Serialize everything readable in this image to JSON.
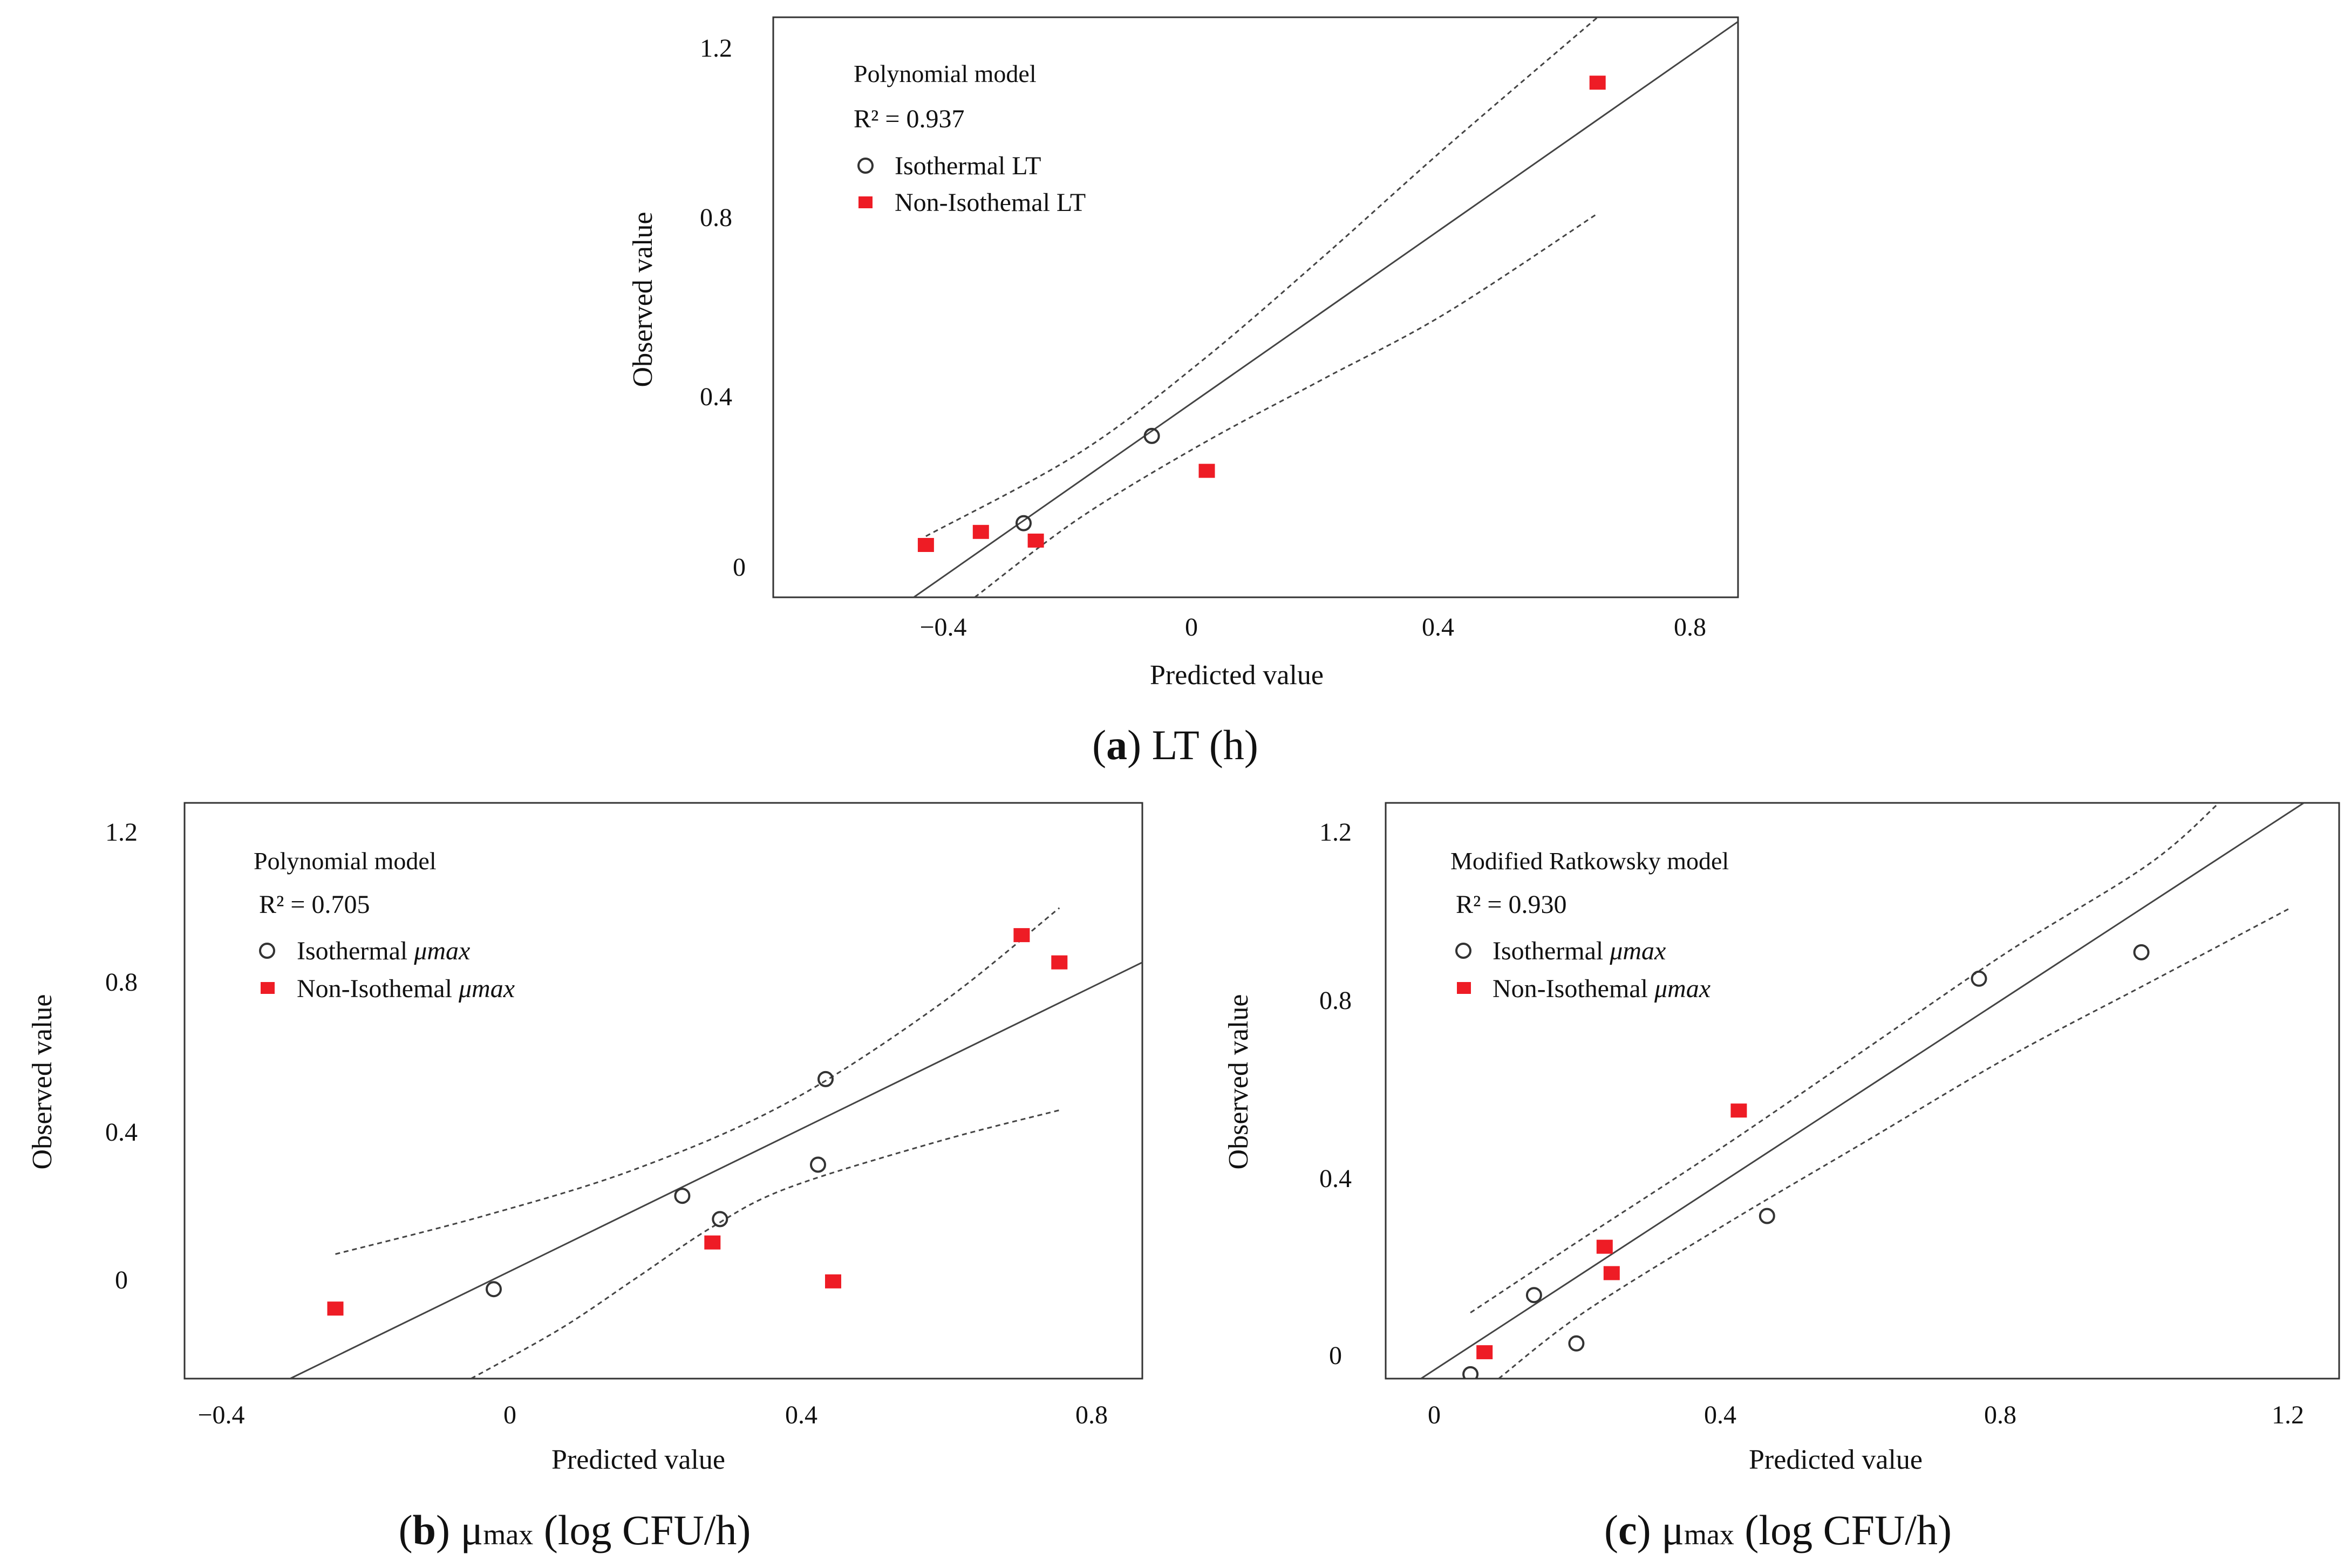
{
  "chart_data": [
    {
      "id": "a",
      "type": "scatter",
      "title": "Polynomial model",
      "r2_label": "R² = 0.937",
      "xlabel": "Predicted value",
      "ylabel": "Observed value",
      "xlim": [
        -0.7,
        0.88
      ],
      "ylim": [
        -0.06,
        1.27
      ],
      "xticks": [
        -0.4,
        0,
        0.4,
        0.8
      ],
      "xtick_labels": [
        "−0.4",
        "0",
        "0.4",
        "0.8"
      ],
      "yticks": [
        0,
        0.4,
        0.8,
        1.2
      ],
      "ytick_labels": [
        "0",
        "0.4",
        "0.8",
        "1.2"
      ],
      "legend": {
        "iso_label": "Isothermal LT",
        "noniso_label": "Non-Isothemal LT",
        "iso_sym": "",
        "noniso_sym": ""
      },
      "caption": {
        "letter": "a",
        "text": ") LT (h)",
        "sub": "",
        "rest": ""
      },
      "series": [
        {
          "name": "Isothermal",
          "marker": "open-circle",
          "points": [
            [
              -0.08,
              0.31
            ],
            [
              -0.29,
              0.11
            ]
          ]
        },
        {
          "name": "Non-Isothermal",
          "marker": "red-square",
          "points": [
            [
              -0.45,
              0.06
            ],
            [
              -0.36,
              0.09
            ],
            [
              -0.27,
              0.07
            ],
            [
              0.01,
              0.23
            ],
            [
              0.65,
              1.12
            ]
          ]
        }
      ],
      "fit_line": [
        [
          -0.47,
          -0.06
        ],
        [
          0.88,
          1.26
        ]
      ],
      "ci_upper": [
        [
          -0.45,
          0.08
        ],
        [
          -0.2,
          0.27
        ],
        [
          0.0,
          0.48
        ],
        [
          0.2,
          0.72
        ],
        [
          0.4,
          0.97
        ],
        [
          0.65,
          1.27
        ]
      ],
      "ci_lower": [
        [
          -0.37,
          -0.06
        ],
        [
          -0.2,
          0.12
        ],
        [
          0.0,
          0.29
        ],
        [
          0.2,
          0.44
        ],
        [
          0.4,
          0.59
        ],
        [
          0.65,
          0.82
        ]
      ]
    },
    {
      "id": "b",
      "type": "scatter",
      "title": "Polynomial model",
      "r2_label": "R² = 0.705",
      "xlabel": "Predicted value",
      "ylabel": "Observed value",
      "xlim": [
        -0.4,
        0.87
      ],
      "ylim": [
        -0.2,
        1.28
      ],
      "xticks": [
        -0.4,
        0,
        0.4,
        0.8
      ],
      "xtick_labels": [
        "−0.4",
        "0",
        "0.4",
        "0.8"
      ],
      "yticks": [
        0,
        0.4,
        0.8,
        1.2
      ],
      "ytick_labels": [
        "0",
        "0.4",
        "0.8",
        "1.2"
      ],
      "legend": {
        "iso_label": "Isothermal ",
        "noniso_label": "Non-Isothemal ",
        "iso_sym": "μmax",
        "noniso_sym": "μmax"
      },
      "caption": {
        "letter": "b",
        "text": ") μ",
        "sub": "max",
        "rest": " (log CFU/h)"
      },
      "series": [
        {
          "name": "Isothermal",
          "marker": "open-circle",
          "points": [
            [
              0.01,
              0.03
            ],
            [
              0.26,
              0.27
            ],
            [
              0.31,
              0.21
            ],
            [
              0.44,
              0.35
            ],
            [
              0.45,
              0.57
            ]
          ]
        },
        {
          "name": "Non-Isothermal",
          "marker": "red-square",
          "points": [
            [
              -0.2,
              -0.02
            ],
            [
              0.3,
              0.15
            ],
            [
              0.46,
              0.05
            ],
            [
              0.71,
              0.94
            ],
            [
              0.76,
              0.87
            ]
          ]
        }
      ],
      "fit_line": [
        [
          -0.26,
          -0.2
        ],
        [
          0.87,
          0.87
        ]
      ],
      "ci_upper": [
        [
          -0.2,
          0.12
        ],
        [
          0.0,
          0.22
        ],
        [
          0.2,
          0.34
        ],
        [
          0.4,
          0.51
        ],
        [
          0.6,
          0.76
        ],
        [
          0.76,
          1.01
        ]
      ],
      "ci_lower": [
        [
          -0.02,
          -0.2
        ],
        [
          0.1,
          -0.07
        ],
        [
          0.2,
          0.06
        ],
        [
          0.3,
          0.19
        ],
        [
          0.4,
          0.29
        ],
        [
          0.6,
          0.41
        ],
        [
          0.76,
          0.49
        ]
      ]
    },
    {
      "id": "c",
      "type": "scatter",
      "title": "Modified Ratkowsky model",
      "r2_label": "R² = 0.930",
      "xlabel": "Predicted value",
      "ylabel": "Observed value",
      "xlim": [
        -0.08,
        1.27
      ],
      "ylim": [
        -0.04,
        1.27
      ],
      "xticks": [
        0,
        0.4,
        0.8,
        1.2
      ],
      "xtick_labels": [
        "0",
        "0.4",
        "0.8",
        "1.2"
      ],
      "yticks": [
        0,
        0.4,
        0.8,
        1.2
      ],
      "ytick_labels": [
        "0",
        "0.4",
        "0.8",
        "1.2"
      ],
      "legend": {
        "iso_label": "Isothermal ",
        "noniso_label": "Non-Isothemal ",
        "iso_sym": "μmax",
        "noniso_sym": "μmax"
      },
      "caption": {
        "letter": "c",
        "text": ") μ",
        "sub": "max",
        "rest": " (log CFU/h)"
      },
      "series": [
        {
          "name": "Isothermal",
          "marker": "open-circle",
          "points": [
            [
              0.04,
              -0.03
            ],
            [
              0.13,
              0.15
            ],
            [
              0.19,
              0.04
            ],
            [
              0.46,
              0.33
            ],
            [
              0.76,
              0.87
            ],
            [
              0.99,
              0.93
            ]
          ]
        },
        {
          "name": "Non-Isothermal",
          "marker": "red-square",
          "points": [
            [
              0.06,
              0.02
            ],
            [
              0.23,
              0.26
            ],
            [
              0.24,
              0.2
            ],
            [
              0.42,
              0.57
            ]
          ]
        }
      ],
      "fit_line": [
        [
          -0.03,
          -0.04
        ],
        [
          1.22,
          1.27
        ]
      ],
      "ci_upper": [
        [
          0.04,
          0.11
        ],
        [
          0.2,
          0.28
        ],
        [
          0.4,
          0.49
        ],
        [
          0.6,
          0.71
        ],
        [
          0.8,
          0.93
        ],
        [
          1.0,
          1.13
        ],
        [
          1.1,
          1.27
        ]
      ],
      "ci_lower": [
        [
          0.08,
          -0.04
        ],
        [
          0.2,
          0.11
        ],
        [
          0.4,
          0.31
        ],
        [
          0.6,
          0.5
        ],
        [
          0.8,
          0.69
        ],
        [
          1.0,
          0.86
        ],
        [
          1.2,
          1.03
        ]
      ]
    }
  ],
  "colors": {
    "noniso": "#ee1c25",
    "iso_stroke": "#333333",
    "line": "#444444"
  }
}
